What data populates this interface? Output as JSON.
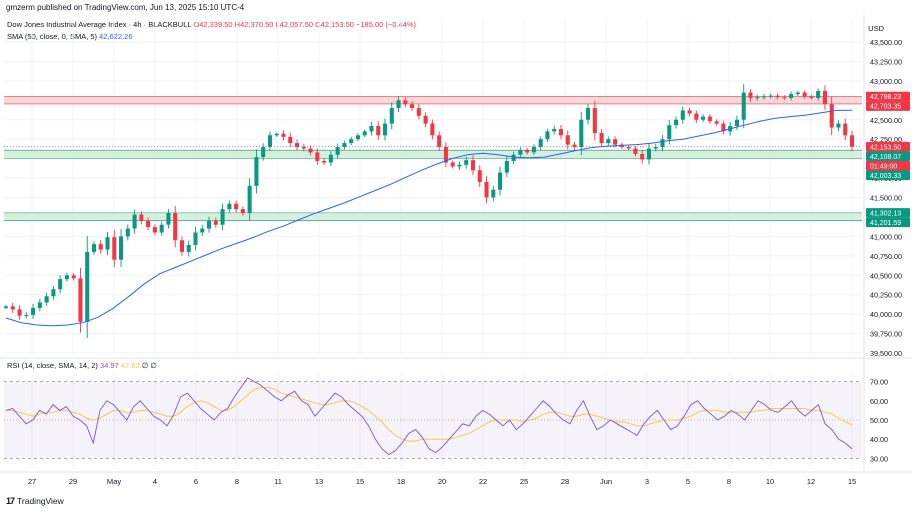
{
  "header": {
    "published": "gmzerm published on TradingView.com, Jun 13, 2025 15:10 UTC-4",
    "symbol_line": "Dow Jones Industrial Average Index · 4h · BLACKBULL",
    "ohlc": "O42,339.50  H42,370.50  L42,057.50  C42,153.50  −185.00 (−0.44%)",
    "sma_label": "SMA (50, close, 0, SMA, 5)",
    "sma_value": "42,622.26",
    "rsi_label": "RSI (14, close, SMA, 14, 2)",
    "rsi_value": "34.97",
    "rsi_ma_value": "47.62",
    "rsi_extra": "∅  ∅",
    "currency": "USD"
  },
  "footer": {
    "logo": "17",
    "brand": "TradingView"
  },
  "colors": {
    "up": "#089981",
    "down": "#f23645",
    "sma": "#2962ff",
    "rsi": "#7e57c2",
    "rsi_ma": "#f7c948",
    "resistance_zone": "#f8d4d6",
    "support_zone": "#d3eed8"
  },
  "chart_data": [
    {
      "type": "candlestick",
      "title": "Dow Jones Industrial Average Index · 4h · BLACKBULL",
      "x_ticks": [
        "27",
        "29",
        "May",
        "4",
        "6",
        "8",
        "11",
        "13",
        "15",
        "18",
        "20",
        "22",
        "25",
        "28",
        "Jun",
        "3",
        "5",
        "8",
        "10",
        "12",
        "15"
      ],
      "y_ticks": [
        "43,500.00",
        "43,250.00",
        "43,000.00",
        "42,750.00",
        "42,500.00",
        "42,250.00",
        "42,000.00",
        "41,750.00",
        "41,500.00",
        "41,250.00",
        "41,000.00",
        "40,750.00",
        "40,500.00",
        "40,250.00",
        "40,000.00",
        "39,750.00",
        "39,500.00"
      ],
      "ylim": [
        39500,
        43700
      ],
      "price_labels": [
        {
          "text": "42,798.23",
          "value": 42798.23,
          "kind": "resistance"
        },
        {
          "text": "42,703.35",
          "value": 42703.35,
          "kind": "resistance"
        },
        {
          "text": "42,153.50",
          "value": 42153.5,
          "kind": "last"
        },
        {
          "text": "01:49:00",
          "value": 42080,
          "kind": "countdown"
        },
        {
          "text": "42,108.07",
          "value": 42108.07,
          "kind": "support"
        },
        {
          "text": "42,003.33",
          "value": 42003.33,
          "kind": "support"
        },
        {
          "text": "41,302.13",
          "value": 41302.13,
          "kind": "support"
        },
        {
          "text": "41,201.59",
          "value": 41201.59,
          "kind": "support"
        }
      ],
      "zones": [
        {
          "from": 42703.35,
          "to": 42798.23,
          "kind": "resistance"
        },
        {
          "from": 42003.33,
          "to": 42108.07,
          "kind": "support"
        },
        {
          "from": 41201.59,
          "to": 41302.13,
          "kind": "support"
        }
      ],
      "close_path": [
        40100,
        40060,
        39980,
        39990,
        40080,
        40150,
        40230,
        40320,
        40450,
        40500,
        40460,
        39900,
        40800,
        40900,
        40830,
        40990,
        40700,
        41000,
        41100,
        41280,
        41200,
        41120,
        41050,
        41150,
        41300,
        40950,
        40800,
        40890,
        41050,
        41100,
        41200,
        41150,
        41350,
        41420,
        41350,
        41300,
        41650,
        42020,
        42150,
        42300,
        42320,
        42280,
        42200,
        42150,
        42130,
        42080,
        41970,
        41950,
        42050,
        42150,
        42200,
        42250,
        42300,
        42350,
        42420,
        42300,
        42450,
        42650,
        42750,
        42700,
        42650,
        42550,
        42450,
        42300,
        42150,
        41950,
        41900,
        41920,
        41980,
        41850,
        41700,
        41500,
        41600,
        41820,
        41970,
        42050,
        42110,
        42080,
        42150,
        42250,
        42350,
        42380,
        42300,
        42180,
        42150,
        42500,
        42650,
        42330,
        42200,
        42250,
        42180,
        42150,
        42130,
        42060,
        41990,
        42130,
        42150,
        42250,
        42430,
        42500,
        42620,
        42580,
        42500,
        42540,
        42480,
        42450,
        42350,
        42420,
        42500,
        42850,
        42780,
        42790,
        42800,
        42810,
        42790,
        42780,
        42830,
        42850,
        42800,
        42780,
        42870,
        42700,
        42400,
        42450,
        42300,
        42153.5
      ],
      "sma_path": [
        39950,
        39890,
        39860,
        39850,
        39860,
        39890,
        39960,
        40080,
        40230,
        40390,
        40520,
        40600,
        40680,
        40760,
        40840,
        40910,
        40980,
        41060,
        41130,
        41210,
        41290,
        41360,
        41430,
        41510,
        41590,
        41670,
        41760,
        41850,
        41930,
        42000,
        42050,
        42070,
        42050,
        42020,
        42010,
        42020,
        42060,
        42100,
        42140,
        42160,
        42170,
        42180,
        42200,
        42230,
        42250,
        42290,
        42330,
        42380,
        42430,
        42480,
        42520,
        42540,
        42560,
        42590,
        42620,
        42622.26
      ]
    },
    {
      "type": "line",
      "title": "RSI (14, close, SMA, 14, 2)",
      "y_ticks": [
        "70.00",
        "60.00",
        "50.00",
        "40.00",
        "30.00"
      ],
      "ylim": [
        25,
        75
      ],
      "levels": [
        70,
        50,
        30
      ],
      "series": [
        {
          "name": "RSI",
          "values": [
            55,
            56,
            52,
            48,
            50,
            55,
            53,
            58,
            55,
            57,
            52,
            50,
            47,
            38,
            55,
            60,
            58,
            54,
            50,
            57,
            60,
            56,
            52,
            50,
            47,
            53,
            62,
            64,
            60,
            56,
            53,
            50,
            54,
            56,
            62,
            67,
            72,
            70,
            68,
            65,
            62,
            60,
            63,
            65,
            60,
            58,
            52,
            56,
            60,
            64,
            62,
            58,
            55,
            52,
            47,
            40,
            35,
            32,
            34,
            38,
            43,
            45,
            41,
            35,
            33,
            36,
            40,
            44,
            48,
            47,
            52,
            55,
            53,
            50,
            47,
            50,
            45,
            48,
            52,
            56,
            60,
            57,
            53,
            50,
            48,
            55,
            60,
            52,
            45,
            47,
            50,
            48,
            46,
            44,
            42,
            48,
            52,
            55,
            50,
            45,
            47,
            52,
            58,
            60,
            56,
            53,
            50,
            52,
            55,
            53,
            50,
            55,
            60,
            58,
            55,
            54,
            57,
            60,
            55,
            52,
            55,
            58,
            48,
            45,
            40,
            38,
            34.97
          ]
        },
        {
          "name": "RSI MA",
          "values": [
            55,
            55,
            54,
            53,
            52,
            53,
            54,
            54,
            55,
            55,
            54,
            53,
            51,
            50,
            51,
            53,
            55,
            55,
            54,
            54,
            55,
            55,
            54,
            53,
            52,
            52,
            54,
            57,
            59,
            60,
            59,
            57,
            55,
            55,
            57,
            60,
            63,
            66,
            67,
            67,
            66,
            64,
            63,
            62,
            61,
            60,
            59,
            58,
            58,
            59,
            60,
            60,
            59,
            57,
            55,
            52,
            49,
            45,
            42,
            40,
            39,
            39,
            40,
            40,
            40,
            40,
            40,
            41,
            42,
            43,
            45,
            47,
            49,
            50,
            50,
            50,
            50,
            49,
            50,
            51,
            53,
            54,
            54,
            53,
            52,
            52,
            53,
            53,
            52,
            51,
            50,
            49,
            49,
            48,
            47,
            47,
            48,
            49,
            50,
            50,
            50,
            51,
            52,
            54,
            55,
            55,
            55,
            54,
            54,
            54,
            54,
            54,
            55,
            55,
            56,
            56,
            56,
            56,
            56,
            56,
            55,
            55,
            54,
            53,
            51,
            49,
            47.62
          ]
        }
      ]
    }
  ]
}
